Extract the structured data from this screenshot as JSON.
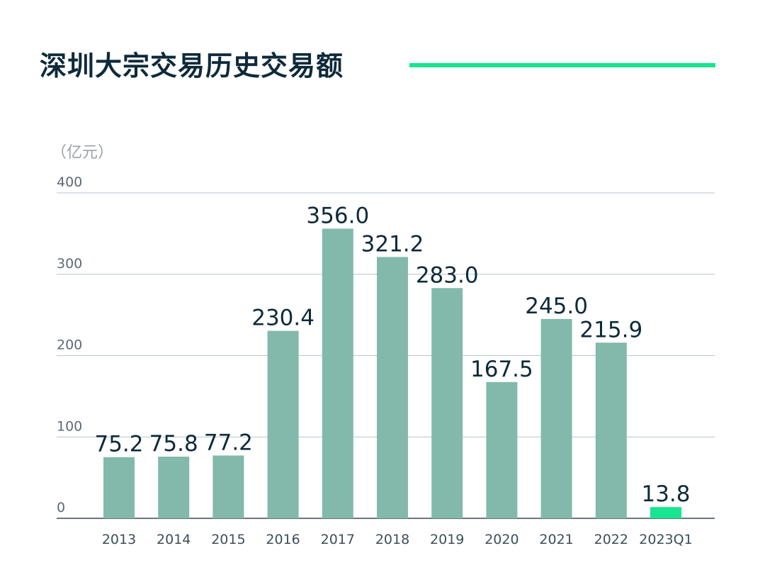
{
  "chart_data": {
    "type": "bar",
    "title": "深圳大宗交易历史交易额",
    "ylabel": "（亿元）",
    "xlabel": "",
    "ylim": [
      0,
      400
    ],
    "yticks": [
      0,
      100,
      200,
      300,
      400
    ],
    "grid": true,
    "categories": [
      "2013",
      "2014",
      "2015",
      "2016",
      "2017",
      "2018",
      "2019",
      "2020",
      "2021",
      "2022",
      "2023Q1"
    ],
    "values": [
      75.2,
      75.8,
      77.2,
      230.4,
      356.0,
      321.2,
      283.0,
      167.5,
      245.0,
      215.9,
      13.8
    ],
    "value_labels": [
      "75.2",
      "75.8",
      "77.2",
      "230.4",
      "356.0",
      "321.2",
      "283.0",
      "167.5",
      "245.0",
      "215.9",
      "13.8"
    ],
    "highlight_index": 10
  },
  "colors": {
    "bar": "#82b9ab",
    "highlight": "#18e58f",
    "title_rule": "#18e58f"
  }
}
